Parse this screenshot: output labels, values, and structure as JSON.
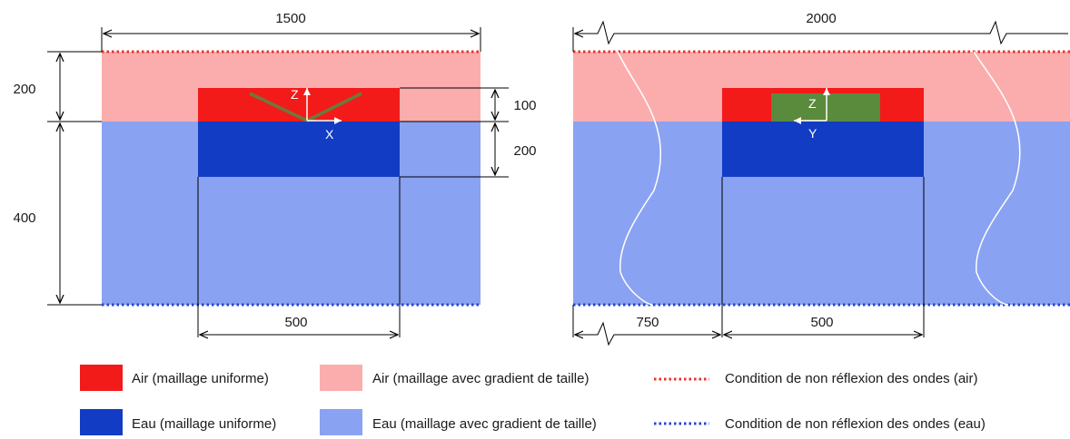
{
  "colors": {
    "air_uniform": "#f31a1a",
    "air_gradient": "#fbadad",
    "water_uniform": "#133cc4",
    "water_gradient": "#8aa2f2",
    "sample": "#5a8a3c",
    "sample_line": "#6b7b3a",
    "bc_air": "#e8322f",
    "bc_water": "#2a45c8"
  },
  "left_view": {
    "width_label": "1500",
    "air_height_label": "200",
    "water_height_label": "400",
    "inner_air_label": "100",
    "inner_water_label": "200",
    "inner_width_label": "500",
    "axis_z": "Z",
    "axis_x": "X"
  },
  "right_view": {
    "width_label": "2000",
    "offset_label": "750",
    "inner_width_label": "500",
    "axis_z": "Z",
    "axis_y": "Y"
  },
  "legend": {
    "air_uniform": "Air (maillage uniforme)",
    "air_gradient": "Air (maillage avec gradient de taille)",
    "bc_air": "Condition de non réflexion des ondes (air)",
    "water_uniform": "Eau (maillage uniforme)",
    "water_gradient": "Eau (maillage avec gradient de taille)",
    "bc_water": "Condition de non réflexion des ondes (eau)"
  }
}
